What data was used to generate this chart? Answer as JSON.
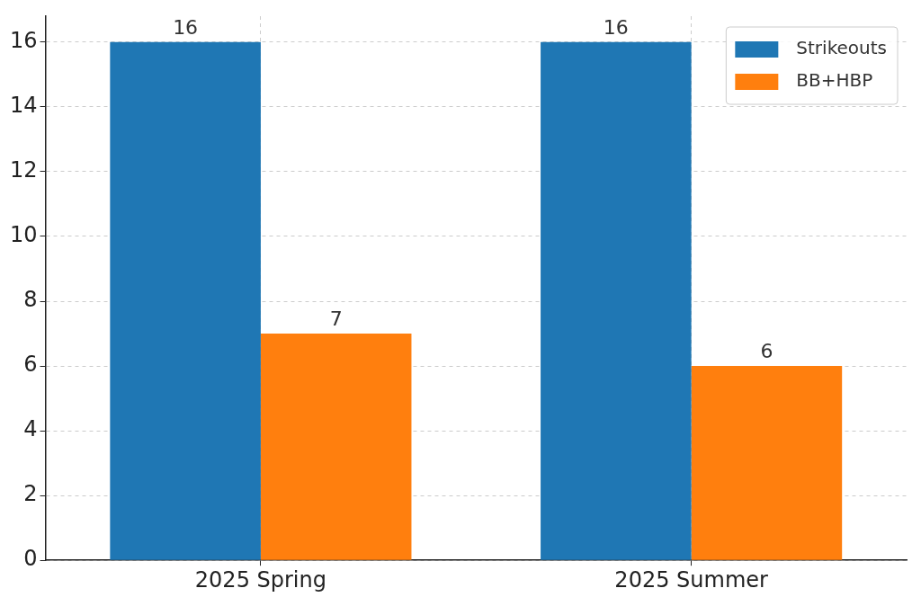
{
  "chart_data": {
    "type": "bar",
    "categories": [
      "2025 Spring",
      "2025 Summer"
    ],
    "series": [
      {
        "name": "Strikeouts",
        "color": "#1f77b4",
        "values": [
          16,
          16
        ]
      },
      {
        "name": "BB+HBP",
        "color": "#ff7f0e",
        "values": [
          7,
          6
        ]
      }
    ],
    "ylim": [
      0,
      16.8
    ],
    "yticks": [
      0,
      2,
      4,
      6,
      8,
      10,
      12,
      14,
      16
    ],
    "grid": true,
    "legend": "top right",
    "data_labels": true
  }
}
